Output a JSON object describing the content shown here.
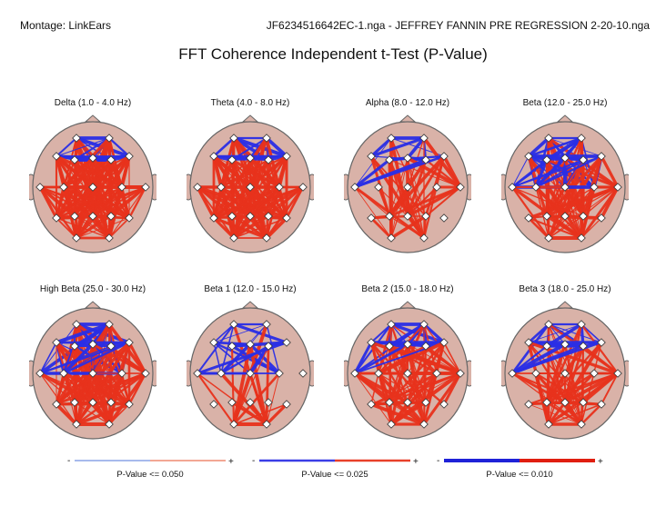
{
  "header": {
    "montage": "Montage:  LinkEars",
    "file_info": "JF6234516642EC-1.nga - JEFFREY FANNIN PRE REGRESSION 2-20-10.nga"
  },
  "title": "FFT Coherence Independent t-Test  (P-Value)",
  "colors": {
    "head_fill": "#d9b2a8",
    "head_stroke": "#666666",
    "negative": "#2a2ee6",
    "positive": "#e8321c"
  },
  "panels": [
    {
      "label": "Delta (1.0 - 4.0 Hz)",
      "blue_groups": [
        "frontal"
      ],
      "red_groups": [
        "central",
        "temporal",
        "parietal",
        "occipital"
      ],
      "density": 1.0
    },
    {
      "label": "Theta (4.0 - 8.0 Hz)",
      "blue_groups": [
        "frontal"
      ],
      "red_groups": [
        "central",
        "temporal",
        "parietal",
        "occipital"
      ],
      "density": 0.9
    },
    {
      "label": "Alpha (8.0 - 12.0 Hz)",
      "blue_groups": [
        "frontal",
        "left"
      ],
      "red_groups": [
        "parietal",
        "occipital",
        "right"
      ],
      "density": 0.55
    },
    {
      "label": "Beta (12.0 - 25.0 Hz)",
      "blue_groups": [
        "frontal",
        "left",
        "central"
      ],
      "red_groups": [
        "parietal",
        "occipital",
        "right"
      ],
      "density": 0.8
    },
    {
      "label": "High Beta (25.0 - 30.0 Hz)",
      "blue_groups": [
        "frontal",
        "central",
        "left"
      ],
      "red_groups": [
        "temporal",
        "parietal",
        "right",
        "occipital"
      ],
      "density": 0.85
    },
    {
      "label": "Beta 1 (12.0 - 15.0 Hz)",
      "blue_groups": [
        "frontal",
        "left",
        "central"
      ],
      "red_groups": [
        "occipital"
      ],
      "density": 0.55
    },
    {
      "label": "Beta 2 (15.0 - 18.0 Hz)",
      "blue_groups": [
        "frontal",
        "left"
      ],
      "red_groups": [
        "central",
        "right",
        "parietal",
        "occipital"
      ],
      "density": 0.7
    },
    {
      "label": "Beta 3 (18.0 - 25.0 Hz)",
      "blue_groups": [
        "frontal",
        "left"
      ],
      "red_groups": [
        "parietal",
        "occipital",
        "right"
      ],
      "density": 0.7
    }
  ],
  "legends": [
    {
      "minus": "-",
      "plus": "+",
      "label": "P-Value <= 0.050",
      "stroke": 1.5,
      "neg": "#8aa4e6",
      "pos": "#ef8a70"
    },
    {
      "minus": "-",
      "plus": "+",
      "label": "P-Value <= 0.025",
      "stroke": 2.5,
      "neg": "#3a3ee6",
      "pos": "#e8402a"
    },
    {
      "minus": "-",
      "plus": "+",
      "label": "P-Value <= 0.010",
      "stroke": 4,
      "neg": "#1f22d8",
      "pos": "#e01e10"
    }
  ]
}
